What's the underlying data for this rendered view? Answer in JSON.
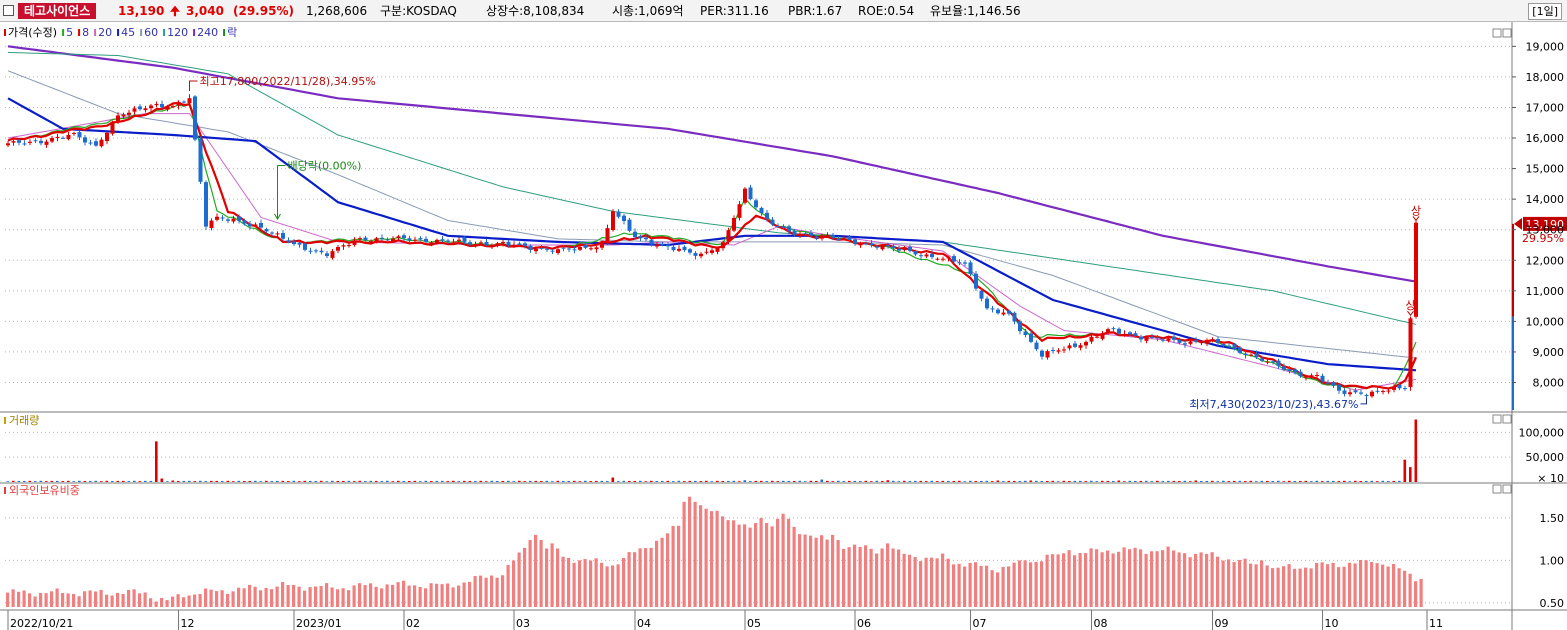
{
  "header": {
    "stock_name": "테고사이언스",
    "price": "13,190",
    "change": "3,040",
    "change_pct": "(29.95%)",
    "volume": "1,268,606",
    "market": "구분:KOSDAQ",
    "shares": "상장수:8,108,834",
    "market_cap": "시총:1,069억",
    "per": "PER:311.16",
    "pbr": "PBR:1.67",
    "roe": "ROE:0.54",
    "float": "유보율:1,146.56",
    "period": "[1일]"
  },
  "colors": {
    "up": "#e00000",
    "down": "#1e6cd0",
    "ma5": "#22aa22",
    "ma8": "#e00000",
    "ma20": "#cc66cc",
    "ma45": "#0a1ec8",
    "ma60": "#8a9ab4",
    "ma120": "#2e9e7e",
    "ma240": "#7a2cc0",
    "grid": "#b8b8b8",
    "foreign": "#f08080"
  },
  "chart_data": {
    "type": "candlestick",
    "price_panel": {
      "legend": [
        {
          "label": "가격(수정)",
          "color": "#e00000"
        },
        {
          "label": "5",
          "color": "#22aa22"
        },
        {
          "label": "8",
          "color": "#e00000"
        },
        {
          "label": "20",
          "color": "#cc66cc"
        },
        {
          "label": "45",
          "color": "#0a1ec8"
        },
        {
          "label": "60",
          "color": "#8a9ab4"
        },
        {
          "label": "120",
          "color": "#2e9e7e"
        },
        {
          "label": "240",
          "color": "#7a2cc0"
        },
        {
          "label": "락",
          "color": "#1a8a1a"
        }
      ],
      "y_ticks": [
        "19,000",
        "18,000",
        "17,000",
        "16,000",
        "15,000",
        "14,000",
        "13,000",
        "12,000",
        "11,000",
        "10,000",
        "9,000",
        "8,000"
      ],
      "ylim": [
        7100,
        19600
      ],
      "high_note": "최고17,800(2022/11/28),34.95%",
      "low_note": "최저7,430(2023/10/23),43.67%",
      "dividend_note": "배당락(0.00%)",
      "limit_up_label": "상",
      "last_price": "13,190",
      "last_pct": "29.95%",
      "anchors": [
        [
          0,
          15800
        ],
        [
          6,
          15900
        ],
        [
          12,
          16100
        ],
        [
          16,
          15750
        ],
        [
          20,
          16700
        ],
        [
          26,
          17100
        ],
        [
          30,
          17000
        ],
        [
          33,
          17300
        ],
        [
          36,
          13200
        ],
        [
          38,
          13400
        ],
        [
          46,
          13100
        ],
        [
          52,
          12500
        ],
        [
          58,
          12200
        ],
        [
          64,
          12700
        ],
        [
          72,
          12700
        ],
        [
          82,
          12600
        ],
        [
          92,
          12500
        ],
        [
          100,
          12300
        ],
        [
          108,
          12500
        ],
        [
          110,
          13600
        ],
        [
          114,
          12800
        ],
        [
          120,
          12400
        ],
        [
          126,
          12200
        ],
        [
          130,
          12500
        ],
        [
          134,
          14300
        ],
        [
          138,
          13300
        ],
        [
          142,
          12900
        ],
        [
          148,
          12800
        ],
        [
          154,
          12600
        ],
        [
          160,
          12400
        ],
        [
          164,
          12300
        ],
        [
          168,
          12100
        ],
        [
          174,
          11900
        ],
        [
          178,
          10400
        ],
        [
          182,
          10200
        ],
        [
          188,
          8900
        ],
        [
          194,
          9200
        ],
        [
          200,
          9700
        ],
        [
          206,
          9500
        ],
        [
          214,
          9300
        ],
        [
          218,
          9400
        ],
        [
          226,
          8900
        ],
        [
          234,
          8300
        ],
        [
          238,
          8200
        ],
        [
          242,
          7700
        ],
        [
          248,
          7650
        ],
        [
          254,
          7850
        ],
        [
          255,
          10150
        ],
        [
          256,
          13190
        ]
      ],
      "ma_anchors": {
        "ma5": [
          [
            0,
            15900
          ],
          [
            20,
            16600
          ],
          [
            33,
            17100
          ],
          [
            38,
            13600
          ],
          [
            50,
            12600
          ],
          [
            70,
            12700
          ],
          [
            100,
            12400
          ],
          [
            108,
            12700
          ],
          [
            114,
            12900
          ],
          [
            130,
            12500
          ],
          [
            134,
            14000
          ],
          [
            140,
            13100
          ],
          [
            160,
            12400
          ],
          [
            176,
            11500
          ],
          [
            186,
            9500
          ],
          [
            200,
            9600
          ],
          [
            220,
            9300
          ],
          [
            240,
            7900
          ],
          [
            252,
            7800
          ],
          [
            256,
            9300
          ]
        ],
        "ma8": [
          [
            0,
            15900
          ],
          [
            20,
            16500
          ],
          [
            30,
            17100
          ],
          [
            33,
            17100
          ],
          [
            40,
            13600
          ],
          [
            50,
            12600
          ],
          [
            70,
            12600
          ],
          [
            100,
            12400
          ],
          [
            110,
            12600
          ],
          [
            116,
            12800
          ],
          [
            130,
            12400
          ],
          [
            136,
            13500
          ],
          [
            142,
            12900
          ],
          [
            170,
            12200
          ],
          [
            180,
            10600
          ],
          [
            188,
            9400
          ],
          [
            200,
            9600
          ],
          [
            222,
            9300
          ],
          [
            240,
            7950
          ],
          [
            252,
            7800
          ],
          [
            254,
            8100
          ],
          [
            256,
            8800
          ]
        ],
        "ma20": [
          [
            0,
            16000
          ],
          [
            25,
            16800
          ],
          [
            33,
            16800
          ],
          [
            46,
            13400
          ],
          [
            60,
            12600
          ],
          [
            90,
            12500
          ],
          [
            110,
            12500
          ],
          [
            120,
            12600
          ],
          [
            132,
            12500
          ],
          [
            140,
            13100
          ],
          [
            150,
            12800
          ],
          [
            170,
            12300
          ],
          [
            184,
            10500
          ],
          [
            192,
            9700
          ],
          [
            210,
            9400
          ],
          [
            230,
            8500
          ],
          [
            245,
            7750
          ],
          [
            256,
            8100
          ]
        ],
        "ma45": [
          [
            0,
            17300
          ],
          [
            10,
            16300
          ],
          [
            30,
            16100
          ],
          [
            45,
            15900
          ],
          [
            60,
            13900
          ],
          [
            80,
            12800
          ],
          [
            100,
            12600
          ],
          [
            120,
            12500
          ],
          [
            134,
            12800
          ],
          [
            150,
            12800
          ],
          [
            170,
            12600
          ],
          [
            190,
            10700
          ],
          [
            220,
            9200
          ],
          [
            240,
            8600
          ],
          [
            256,
            8400
          ]
        ],
        "ma60": [
          [
            0,
            18200
          ],
          [
            20,
            16800
          ],
          [
            40,
            16200
          ],
          [
            60,
            14800
          ],
          [
            80,
            13300
          ],
          [
            100,
            12700
          ],
          [
            120,
            12600
          ],
          [
            150,
            12600
          ],
          [
            170,
            12500
          ],
          [
            190,
            11500
          ],
          [
            220,
            9500
          ],
          [
            256,
            8800
          ]
        ],
        "ma120": [
          [
            0,
            18800
          ],
          [
            20,
            18700
          ],
          [
            40,
            18100
          ],
          [
            60,
            16100
          ],
          [
            90,
            14400
          ],
          [
            110,
            13600
          ],
          [
            140,
            12900
          ],
          [
            170,
            12600
          ],
          [
            200,
            11800
          ],
          [
            230,
            11000
          ],
          [
            256,
            9900
          ]
        ],
        "ma240": [
          [
            0,
            19000
          ],
          [
            30,
            18300
          ],
          [
            60,
            17300
          ],
          [
            90,
            16800
          ],
          [
            120,
            16300
          ],
          [
            150,
            15400
          ],
          [
            180,
            14200
          ],
          [
            210,
            12800
          ],
          [
            240,
            11800
          ],
          [
            256,
            11300
          ]
        ]
      }
    },
    "volume_panel": {
      "title": "거래량",
      "y_ticks": [
        "100,000",
        "50,000",
        "× 10"
      ],
      "ylim": [
        0,
        125000
      ],
      "spikes": [
        [
          27,
          82000
        ],
        [
          28,
          7000
        ],
        [
          30,
          3000
        ],
        [
          110,
          9000
        ],
        [
          134,
          3500
        ],
        [
          148,
          5000
        ],
        [
          160,
          3500
        ],
        [
          180,
          3000
        ],
        [
          186,
          3000
        ],
        [
          202,
          3000
        ],
        [
          216,
          3000
        ],
        [
          254,
          45000
        ],
        [
          255,
          30000
        ],
        [
          256,
          126000
        ]
      ]
    },
    "foreign_panel": {
      "title": "외국인보유비중",
      "y_ticks": [
        "1.50",
        "1.00",
        "0.50"
      ],
      "ylim": [
        0.45,
        1.9
      ],
      "anchors": [
        [
          0,
          0.62
        ],
        [
          25,
          0.62
        ],
        [
          27,
          0.55
        ],
        [
          29,
          0.52
        ],
        [
          32,
          0.6
        ],
        [
          40,
          0.65
        ],
        [
          50,
          0.7
        ],
        [
          60,
          0.68
        ],
        [
          70,
          0.72
        ],
        [
          80,
          0.7
        ],
        [
          90,
          0.85
        ],
        [
          95,
          1.2
        ],
        [
          100,
          1.05
        ],
        [
          110,
          0.95
        ],
        [
          120,
          1.3
        ],
        [
          125,
          1.6
        ],
        [
          130,
          1.55
        ],
        [
          135,
          1.35
        ],
        [
          140,
          1.45
        ],
        [
          150,
          1.2
        ],
        [
          160,
          1.1
        ],
        [
          170,
          1.0
        ],
        [
          180,
          0.9
        ],
        [
          190,
          1.05
        ],
        [
          200,
          1.12
        ],
        [
          210,
          1.12
        ],
        [
          220,
          1.05
        ],
        [
          230,
          0.9
        ],
        [
          240,
          0.95
        ],
        [
          250,
          0.98
        ],
        [
          256,
          0.8
        ]
      ],
      "wiggles": [
        [
          96,
          1.3
        ],
        [
          99,
          1.2
        ],
        [
          124,
          1.75
        ],
        [
          126,
          1.65
        ],
        [
          132,
          1.45
        ],
        [
          137,
          1.5
        ],
        [
          141,
          1.55
        ],
        [
          150,
          1.3
        ],
        [
          160,
          1.2
        ],
        [
          170,
          1.08
        ],
        [
          185,
          1.0
        ],
        [
          193,
          1.12
        ],
        [
          208,
          1.1
        ],
        [
          228,
          1.0
        ],
        [
          248,
          0.98
        ]
      ]
    },
    "x_labels": [
      "2022/10/21",
      "12",
      "2023/01",
      "02",
      "03",
      "04",
      "05",
      "06",
      "07",
      "08",
      "09",
      "10",
      "11"
    ],
    "x_label_index": [
      0,
      31,
      52,
      72,
      92,
      114,
      134,
      154,
      175,
      197,
      219,
      239,
      258
    ]
  }
}
